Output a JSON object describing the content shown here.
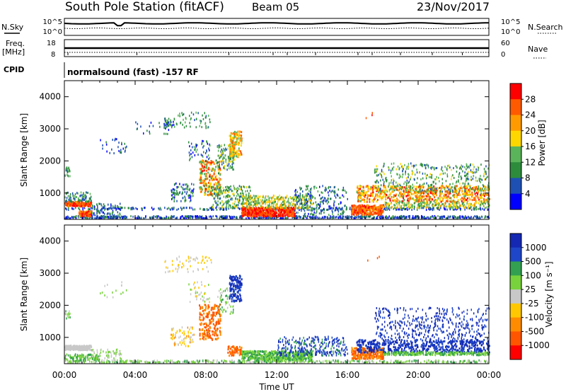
{
  "header": {
    "station": "South Pole Station (fitACF)",
    "beam": "Beam 05",
    "date": "23/Nov/2017"
  },
  "noise_panel": {
    "left_label": "N.Sky",
    "right_label": "N.Search",
    "left_ticks": [
      "10^5",
      "10^0"
    ],
    "right_ticks": [
      "10^5",
      "10^0"
    ]
  },
  "freq_panel": {
    "left_label_1": "Freq.",
    "left_label_2": "[MHz]",
    "right_label": "Nave",
    "left_ticks": [
      "18",
      "8"
    ],
    "right_ticks": [
      "60",
      "0"
    ]
  },
  "cpid": {
    "label": "CPID",
    "value": "normalsound (fast) -157 RF"
  },
  "colors": {
    "power_scale": [
      "#0000ff",
      "#1e50b4",
      "#2d8c3c",
      "#5ab45a",
      "#ffd700",
      "#ff9b00",
      "#ff5a00",
      "#ff0000"
    ],
    "velocity_scale": [
      "#ff0000",
      "#ff5500",
      "#ff8c00",
      "#ffc800",
      "#c8c8c8",
      "#78d23c",
      "#32a050",
      "#1e46c8",
      "#1428b4"
    ]
  },
  "chart_data": [
    {
      "type": "heatmap",
      "parameter": "Power",
      "ylabel": "Slant Range [km]",
      "ylim": [
        180,
        4500
      ],
      "yticks": [
        "1000",
        "2000",
        "3000",
        "4000"
      ],
      "xlim": [
        0,
        24
      ],
      "colorbar": {
        "label": "Power [dB]",
        "ticks": [
          "4",
          "8",
          "12",
          "16",
          "20",
          "24",
          "28"
        ],
        "range": [
          0,
          32
        ]
      }
    },
    {
      "type": "heatmap",
      "parameter": "Velocity",
      "ylabel": "Slant Range [km]",
      "ylim": [
        180,
        4500
      ],
      "yticks": [
        "1000",
        "2000",
        "3000",
        "4000"
      ],
      "xlim": [
        0,
        24
      ],
      "xlabel": "Time UT",
      "xticks": [
        "00:00",
        "04:00",
        "08:00",
        "12:00",
        "16:00",
        "20:00",
        "00:00"
      ],
      "colorbar": {
        "label": "Velocity [m s⁻¹]",
        "ticks": [
          "-1000",
          "-500",
          "-100",
          "-25",
          "25",
          "100",
          "500",
          "1000"
        ]
      }
    }
  ]
}
